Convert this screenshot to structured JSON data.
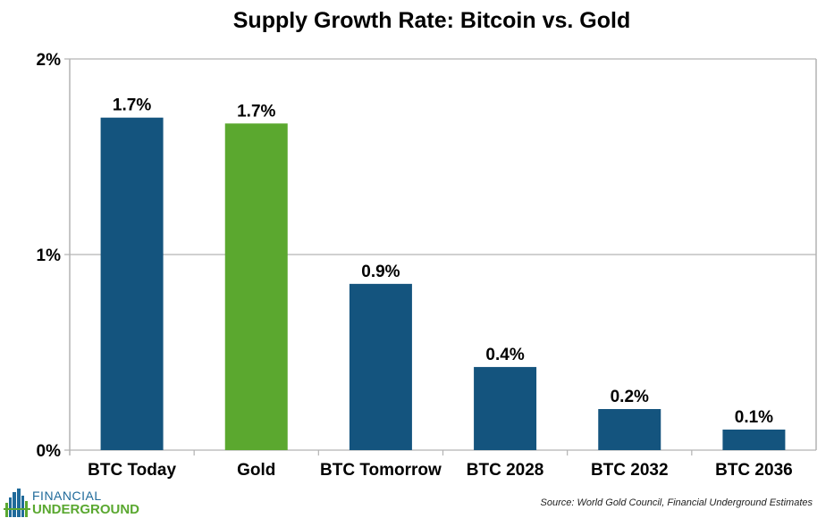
{
  "chart_data": {
    "type": "bar",
    "title": "Supply Growth Rate: Bitcoin vs. Gold",
    "xlabel": "",
    "ylabel": "",
    "categories": [
      "BTC Today",
      "Gold",
      "BTC Tomorrow",
      "BTC 2028",
      "BTC 2032",
      "BTC 2036"
    ],
    "values": [
      1.7,
      1.67,
      0.85,
      0.425,
      0.21,
      0.105
    ],
    "data_labels": [
      "1.7%",
      "1.7%",
      "0.9%",
      "0.4%",
      "0.2%",
      "0.1%"
    ],
    "bar_colors": [
      "#14547e",
      "#5ba82f",
      "#14547e",
      "#14547e",
      "#14547e",
      "#14547e"
    ],
    "ylim": [
      0,
      2
    ],
    "yticks": [
      0,
      1,
      2
    ],
    "ytick_labels": [
      "0%",
      "1%",
      "2%"
    ],
    "grid": true,
    "legend": "none"
  },
  "footer": {
    "source": "Source: World Gold Council, Financial Underground Estimates",
    "logo_top": "FINANCIAL",
    "logo_bottom": "UNDERGROUND"
  },
  "colors": {
    "gridline": "#b3b3b3",
    "btc": "#14547e",
    "gold": "#5ba82f"
  }
}
